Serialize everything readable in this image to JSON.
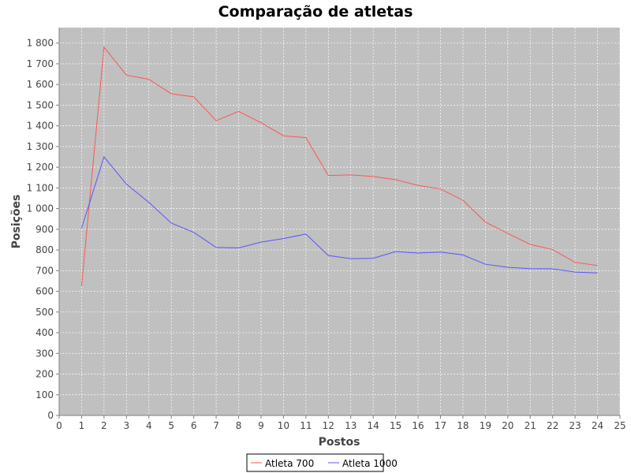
{
  "chart_data": {
    "type": "line",
    "title": "Comparação de atletas",
    "xlabel": "Postos",
    "ylabel": "Posições",
    "xlim": [
      0,
      25
    ],
    "ylim": [
      0,
      1875
    ],
    "xticks": [
      0,
      1,
      2,
      3,
      4,
      5,
      6,
      7,
      8,
      9,
      10,
      11,
      12,
      13,
      14,
      15,
      16,
      17,
      18,
      19,
      20,
      21,
      22,
      23,
      24,
      25
    ],
    "yticks": [
      0,
      100,
      200,
      300,
      400,
      500,
      600,
      700,
      800,
      900,
      1000,
      1100,
      1200,
      1300,
      1400,
      1500,
      1600,
      1700,
      1800
    ],
    "ytick_labels": [
      "0",
      "100",
      "200",
      "300",
      "400",
      "500",
      "600",
      "700",
      "800",
      "900",
      "1 000",
      "1 100",
      "1 200",
      "1 300",
      "1 400",
      "1 500",
      "1 600",
      "1 700",
      "1 800"
    ],
    "grid": true,
    "legend_position": "bottom",
    "plot_background": "#c0c0c0",
    "x": [
      1,
      2,
      3,
      4,
      5,
      6,
      7,
      8,
      9,
      10,
      11,
      12,
      13,
      14,
      15,
      16,
      17,
      18,
      19,
      20,
      21,
      22,
      23,
      24
    ],
    "series": [
      {
        "name": "Atleta 700",
        "color": "#ff5555",
        "values": [
          625,
          1780,
          1645,
          1625,
          1555,
          1540,
          1425,
          1470,
          1415,
          1352,
          1343,
          1160,
          1163,
          1155,
          1140,
          1112,
          1095,
          1040,
          935,
          880,
          827,
          802,
          740,
          725
        ]
      },
      {
        "name": "Atleta 1000",
        "color": "#5555ff",
        "values": [
          905,
          1250,
          1118,
          1030,
          930,
          885,
          812,
          810,
          838,
          855,
          877,
          773,
          758,
          760,
          792,
          785,
          790,
          776,
          731,
          716,
          710,
          709,
          693,
          689
        ]
      }
    ]
  }
}
